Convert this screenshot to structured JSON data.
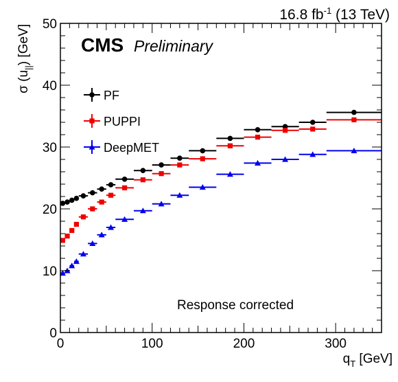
{
  "chart_data": {
    "type": "scatter",
    "header_right": {
      "main": "16.8 fb",
      "sup": "-1",
      "rest": " (13 TeV)"
    },
    "cms_label": "CMS",
    "cms_sublabel": "Preliminary",
    "annotation": "Response corrected",
    "xlabel": {
      "main": "q",
      "sub": "T",
      "unit": " [GeV]"
    },
    "ylabel": {
      "main": "σ (u",
      "sub": "||",
      "unit": ") [GeV]"
    },
    "xlim": [
      0,
      350
    ],
    "ylim": [
      0,
      50
    ],
    "x_ticks": [
      0,
      100,
      200,
      300
    ],
    "y_ticks": [
      0,
      10,
      20,
      30,
      40,
      50
    ],
    "legend_position": "top-left",
    "colors": {
      "PF": "#000000",
      "PUPPI": "#ee0000",
      "DeepMET": "#0000ee"
    },
    "bins": [
      {
        "lo": 0,
        "hi": 5
      },
      {
        "lo": 5,
        "hi": 10
      },
      {
        "lo": 10,
        "hi": 15
      },
      {
        "lo": 15,
        "hi": 20
      },
      {
        "lo": 20,
        "hi": 30
      },
      {
        "lo": 30,
        "hi": 40
      },
      {
        "lo": 40,
        "hi": 50
      },
      {
        "lo": 50,
        "hi": 60
      },
      {
        "lo": 60,
        "hi": 80
      },
      {
        "lo": 80,
        "hi": 100
      },
      {
        "lo": 100,
        "hi": 120
      },
      {
        "lo": 120,
        "hi": 140
      },
      {
        "lo": 140,
        "hi": 170
      },
      {
        "lo": 170,
        "hi": 200
      },
      {
        "lo": 200,
        "hi": 230
      },
      {
        "lo": 230,
        "hi": 260
      },
      {
        "lo": 260,
        "hi": 290
      },
      {
        "lo": 290,
        "hi": 350
      }
    ],
    "series": [
      {
        "name": "PF",
        "marker": "circle",
        "x": [
          2.5,
          7.5,
          12.5,
          17.5,
          25,
          35,
          45,
          55,
          70,
          90,
          110,
          130,
          155,
          185,
          215,
          245,
          275,
          320
        ],
        "y": [
          20.9,
          21.1,
          21.4,
          21.7,
          22.1,
          22.6,
          23.2,
          23.9,
          24.8,
          26.2,
          27.1,
          28.2,
          29.4,
          31.4,
          32.8,
          33.3,
          34.0,
          35.6
        ]
      },
      {
        "name": "PUPPI",
        "marker": "square",
        "x": [
          2.5,
          7.5,
          12.5,
          17.5,
          25,
          35,
          45,
          55,
          70,
          90,
          110,
          130,
          155,
          185,
          215,
          245,
          275,
          320
        ],
        "y": [
          14.9,
          15.6,
          16.5,
          17.5,
          18.7,
          20.0,
          21.1,
          22.2,
          23.4,
          24.7,
          25.7,
          27.1,
          28.1,
          30.2,
          31.6,
          32.7,
          32.9,
          34.4
        ]
      },
      {
        "name": "DeepMET",
        "marker": "triangle",
        "x": [
          2.5,
          7.5,
          12.5,
          17.5,
          25,
          35,
          45,
          55,
          70,
          90,
          110,
          130,
          155,
          185,
          215,
          245,
          275,
          320
        ],
        "y": [
          9.6,
          10.0,
          10.8,
          11.5,
          12.7,
          14.4,
          15.8,
          17.0,
          18.3,
          19.7,
          20.8,
          22.2,
          23.5,
          25.6,
          27.4,
          28.0,
          28.8,
          29.4
        ]
      }
    ]
  }
}
